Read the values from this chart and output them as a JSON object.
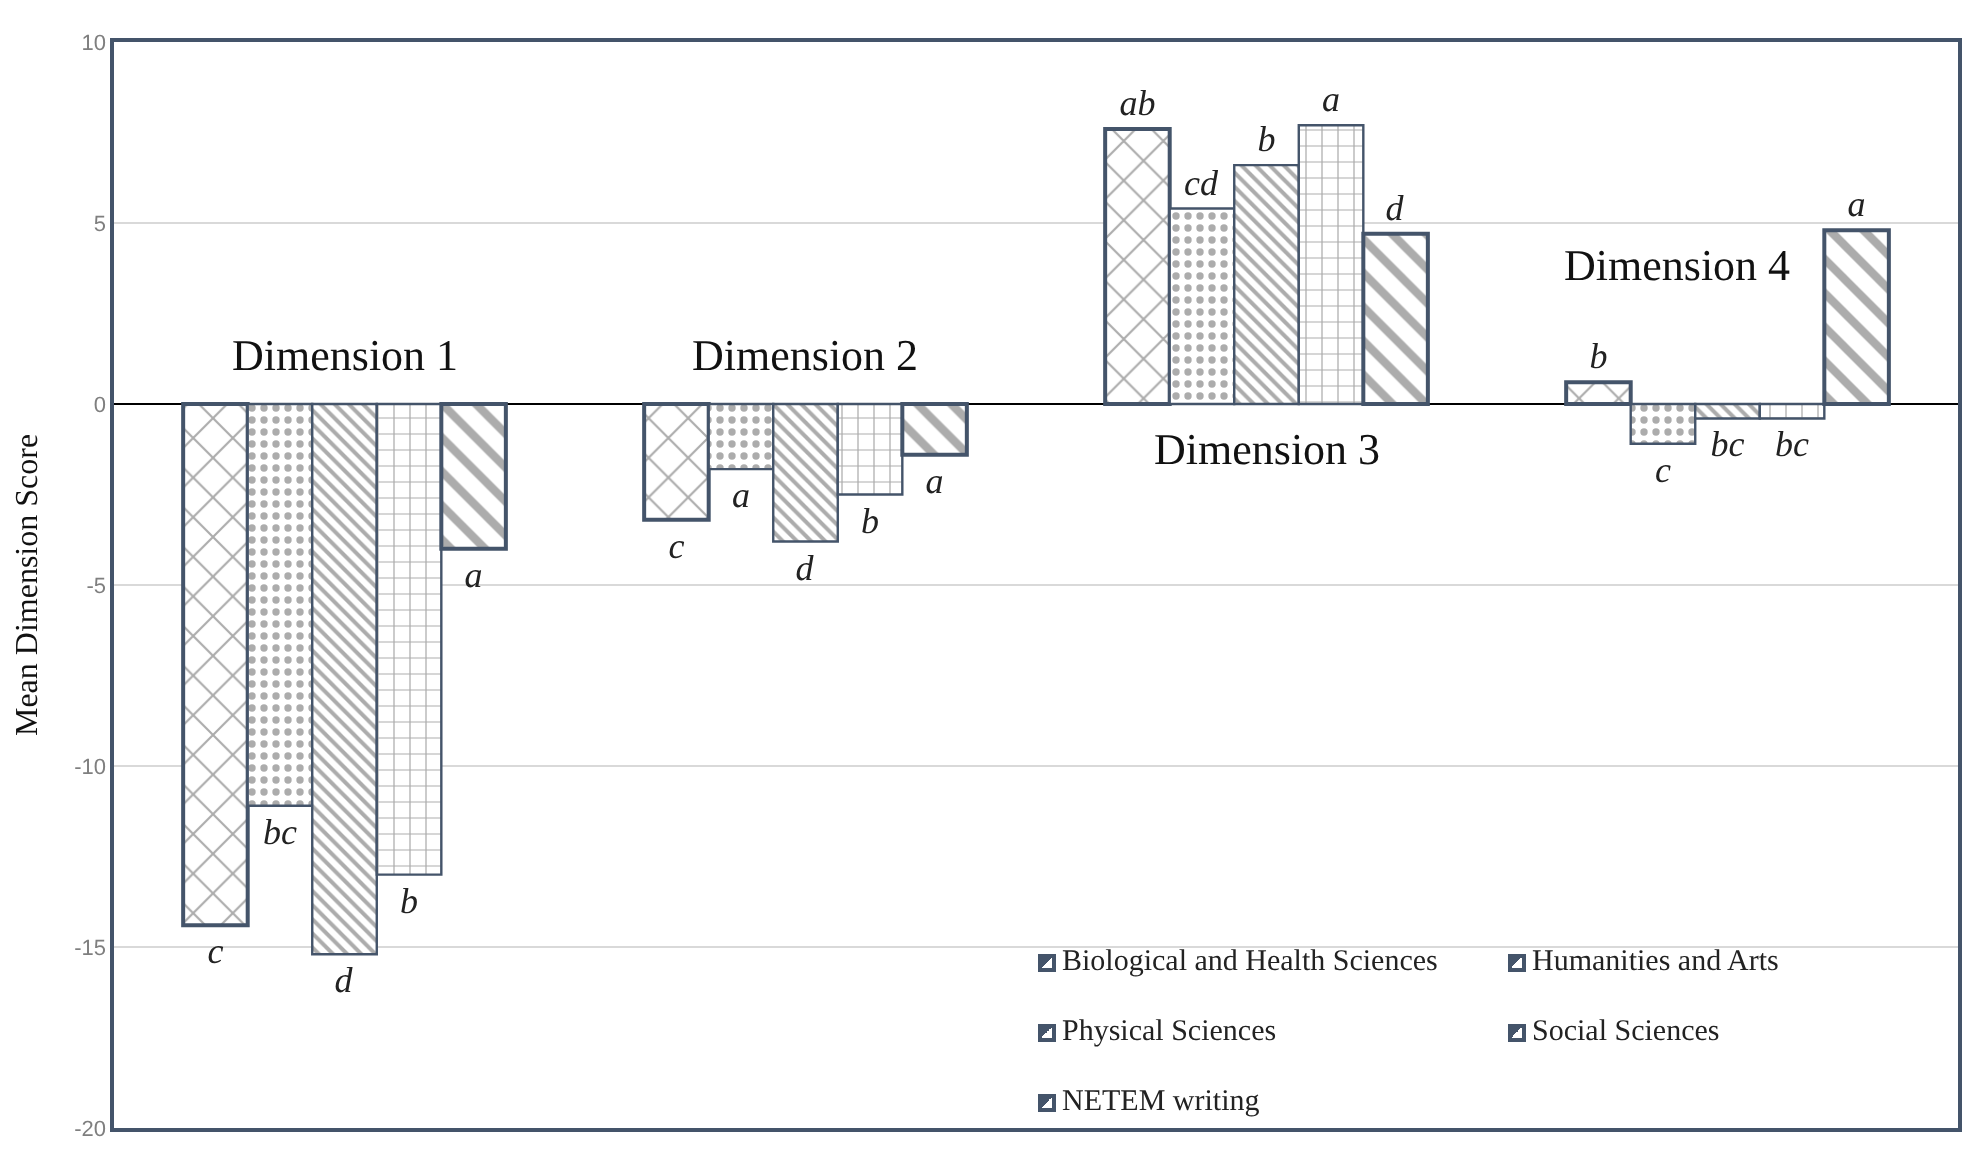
{
  "chart_data": {
    "type": "bar",
    "ylabel": "Mean Dimension Score",
    "categories": [
      "Dimension 1",
      "Dimension 2",
      "Dimension 3",
      "Dimension 4"
    ],
    "series": [
      {
        "name": "Biological and Health Sciences",
        "color": "#44546a",
        "values": [
          -14.4,
          -3.2,
          7.6,
          0.6
        ],
        "value_labels": [
          "c",
          "c",
          "ab",
          "b"
        ]
      },
      {
        "name": "Humanities and Arts",
        "color": "#44546a",
        "values": [
          -11.1,
          -1.8,
          5.4,
          -1.1
        ],
        "value_labels": [
          "bc",
          "a",
          "cd",
          "c"
        ]
      },
      {
        "name": "Physical Sciences",
        "color": "#44546a",
        "values": [
          -15.2,
          -3.8,
          6.6,
          -0.4
        ],
        "value_labels": [
          "d",
          "d",
          "b",
          "bc"
        ]
      },
      {
        "name": "Social Sciences",
        "color": "#44546a",
        "values": [
          -13.0,
          -2.5,
          7.7,
          -0.4
        ],
        "value_labels": [
          "b",
          "b",
          "a",
          "bc"
        ]
      },
      {
        "name": "NETEM writing",
        "color": "#44546a",
        "values": [
          -4.0,
          -1.4,
          4.7,
          4.8
        ],
        "value_labels": [
          "a",
          "a",
          "d",
          "a"
        ]
      }
    ],
    "ylim": [
      -20,
      10
    ],
    "yticks": [
      -20,
      -15,
      -10,
      -5,
      0,
      5,
      10
    ],
    "grid": "y",
    "legend": "bottom right",
    "tick_labels": "y"
  }
}
